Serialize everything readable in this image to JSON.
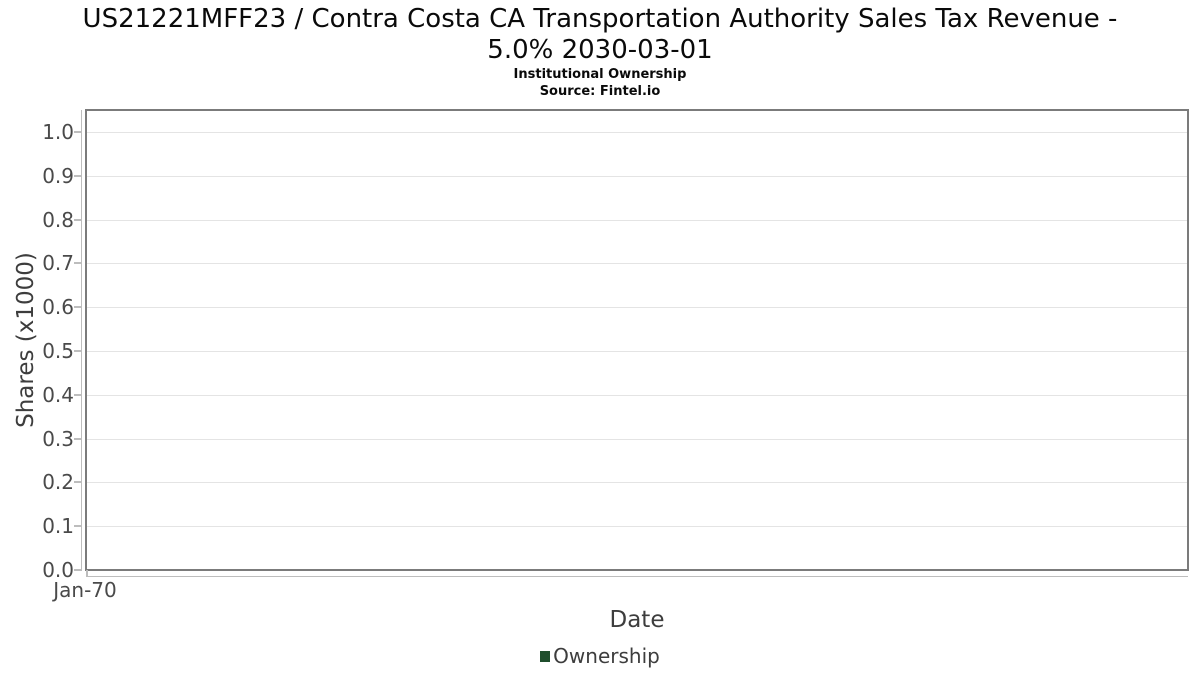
{
  "chart_data": {
    "type": "line",
    "title": "US21221MFF23 / Contra Costa CA Transportation Authority Sales Tax Revenue - 5.0% 2030-03-01",
    "title_lines": [
      "US21221MFF23 / Contra Costa CA Transportation Authority Sales Tax Revenue -",
      "5.0% 2030-03-01"
    ],
    "subtitle": "Institutional Ownership",
    "source": "Source: Fintel.io",
    "xlabel": "Date",
    "ylabel": "Shares (x1000)",
    "x_ticks": [
      "Jan-70"
    ],
    "y_ticks": [
      "1.0",
      "0.9",
      "0.8",
      "0.7",
      "0.6",
      "0.5",
      "0.4",
      "0.3",
      "0.2",
      "0.1",
      "0.0"
    ],
    "ylim": [
      0.0,
      1.05
    ],
    "grid": "horizontal",
    "legend_position": "bottom-center",
    "series": [
      {
        "name": "Ownership",
        "color": "#1f4e2c",
        "values": []
      }
    ]
  }
}
